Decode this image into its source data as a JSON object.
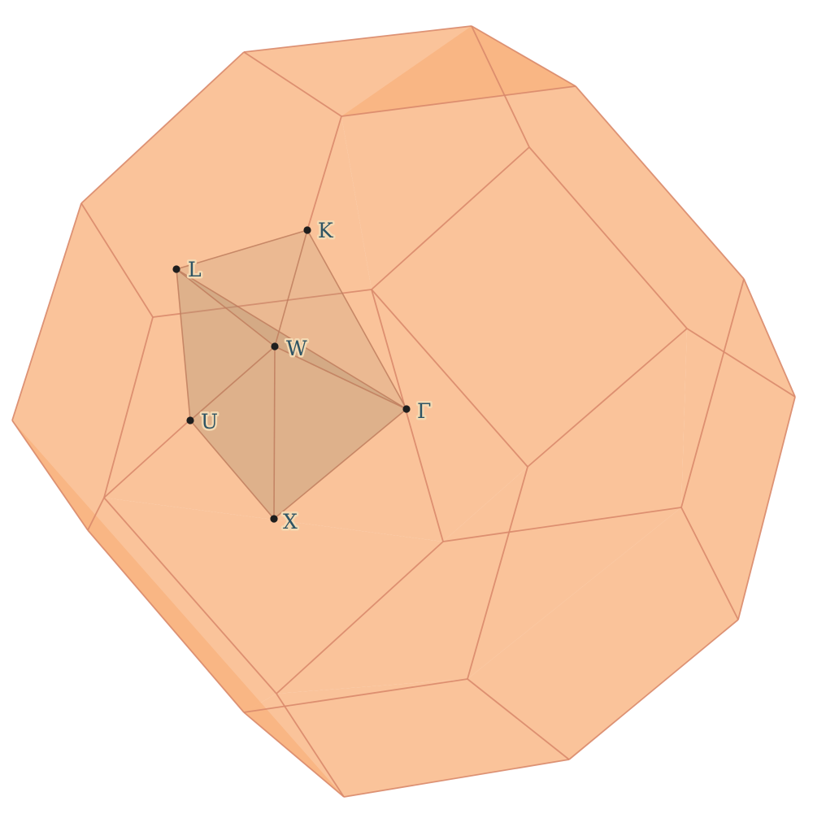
{
  "figure": {
    "colors": {
      "background": "#ffffff",
      "face_fill": "#f8b27d",
      "face_fill_opacity": 0.78,
      "edge": "#d98a6c",
      "wedge_fill": "#a89070",
      "wedge_fill_opacity": 0.42,
      "wedge_edge": "#c07e5e",
      "point": "#1e1e1e",
      "label_text": "#2e5464",
      "label_halo": "#f4d9b2"
    },
    "points": [
      {
        "key": "K",
        "label": "K"
      },
      {
        "key": "L",
        "label": "L"
      },
      {
        "key": "W",
        "label": "W"
      },
      {
        "key": "Gamma",
        "label": "Γ"
      },
      {
        "key": "U",
        "label": "U"
      },
      {
        "key": "X",
        "label": "X"
      }
    ]
  }
}
